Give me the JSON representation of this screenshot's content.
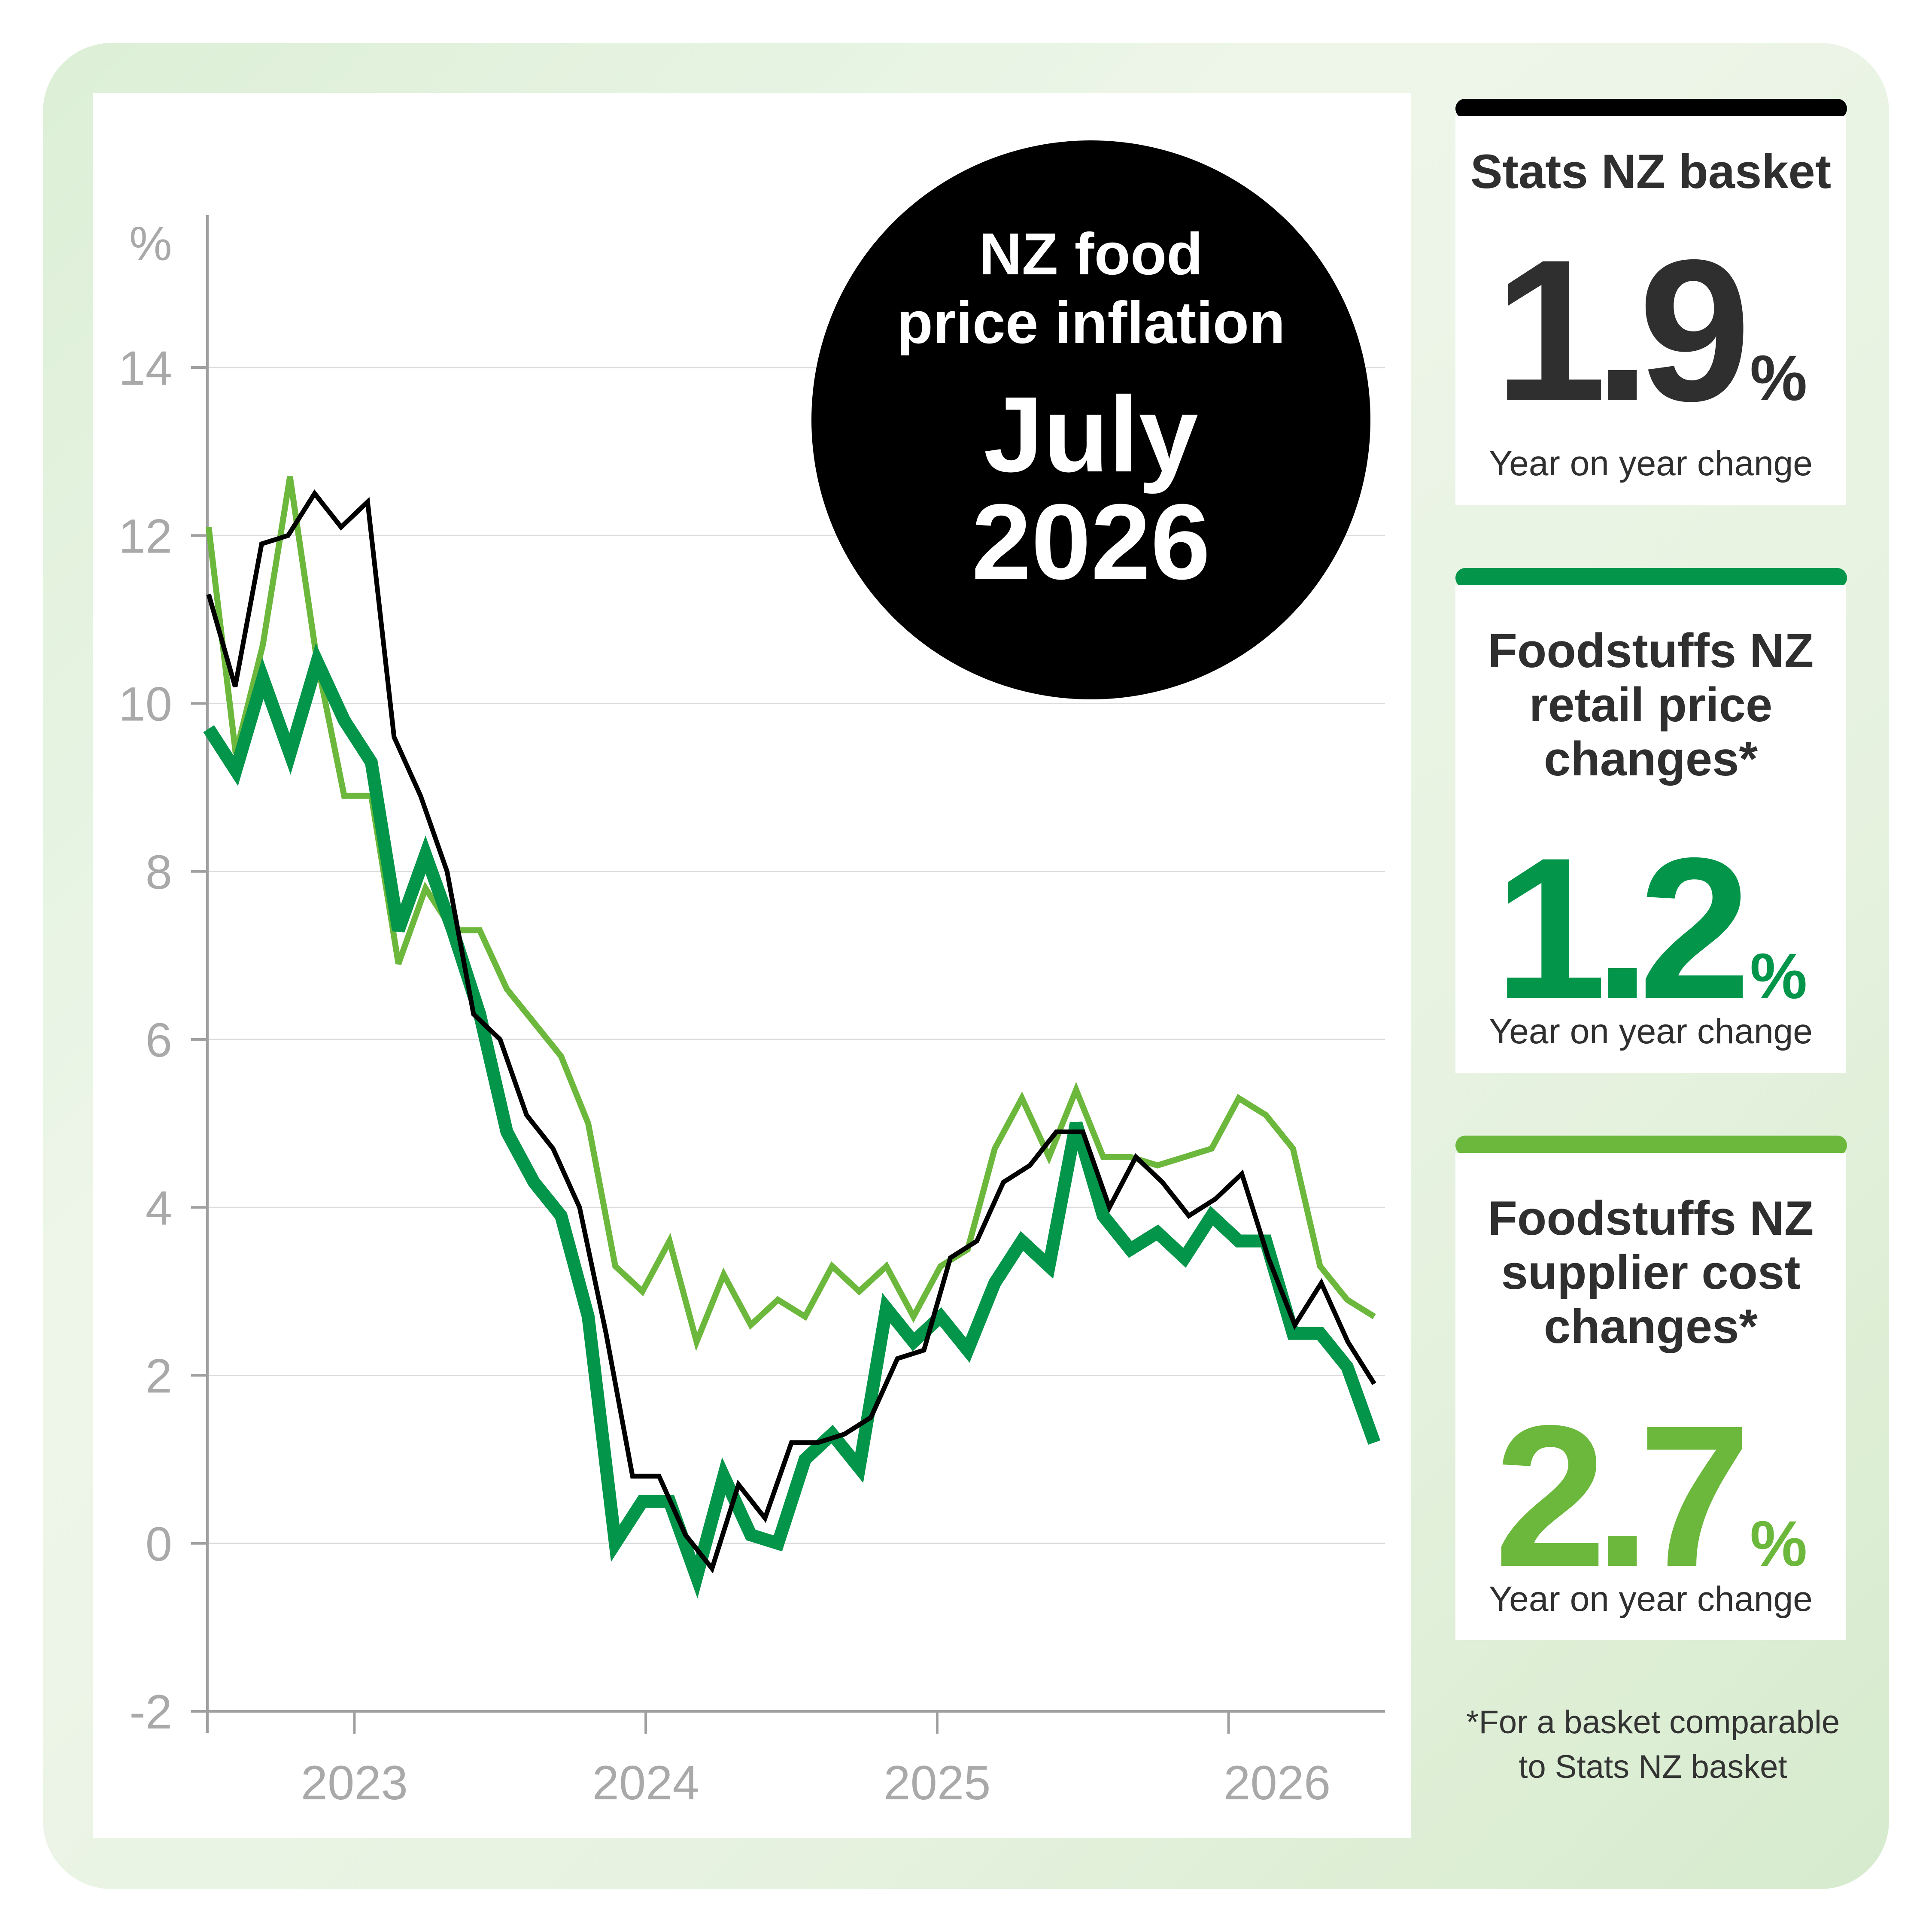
{
  "title": {
    "line1": "NZ food",
    "line2": "price inflation",
    "month": "July",
    "year": "2026"
  },
  "stats": [
    {
      "heading_lines": [
        "Stats NZ basket"
      ],
      "value": "1.9",
      "unit": "%",
      "caption": "Year on year change",
      "color": "#000000",
      "value_color": "#2f2f2f"
    },
    {
      "heading_lines": [
        "Foodstuffs NZ",
        "retail price",
        "changes*"
      ],
      "value": "1.2",
      "unit": "%",
      "caption": "Year on year change",
      "color": "#03954a",
      "value_color": "#03954a"
    },
    {
      "heading_lines": [
        "Foodstuffs NZ",
        "supplier cost",
        "changes*"
      ],
      "value": "2.7",
      "unit": "%",
      "caption": "Year on year change",
      "color": "#6cb83c",
      "value_color": "#6cb83c"
    }
  ],
  "footnote": {
    "line1": "*For a basket comparable",
    "line2": "to Stats NZ basket"
  },
  "chart_data": {
    "type": "line",
    "title": "NZ food price inflation July 2026",
    "ylabel": "%",
    "ylim": [
      -2,
      14
    ],
    "yticks": [
      -2,
      0,
      2,
      4,
      6,
      8,
      10,
      12,
      14
    ],
    "grid": true,
    "x_start": "2022-07",
    "x_end": "2026-07",
    "x_tick_labels": [
      "2023",
      "2024",
      "2025",
      "2026"
    ],
    "series": [
      {
        "key": "supplier",
        "color": "#6cb83c",
        "values": [
          12.1,
          9.4,
          10.7,
          12.7,
          10.5,
          8.9,
          8.9,
          6.9,
          7.8,
          7.3,
          7.3,
          6.6,
          6.2,
          5.8,
          5.0,
          3.3,
          3.0,
          3.6,
          2.4,
          3.2,
          2.6,
          2.9,
          2.7,
          3.3,
          3.0,
          3.3,
          2.7,
          3.3,
          3.5,
          4.7,
          5.3,
          4.6,
          5.4,
          4.6,
          4.6,
          4.5,
          4.6,
          4.7,
          5.3,
          5.1,
          4.7,
          3.3,
          2.9,
          2.7
        ]
      },
      {
        "key": "retail",
        "color": "#03954a",
        "values": [
          9.7,
          9.2,
          10.3,
          9.4,
          10.5,
          9.8,
          9.3,
          7.3,
          8.2,
          7.3,
          6.3,
          4.9,
          4.3,
          3.9,
          2.7,
          0.0,
          0.5,
          0.5,
          -0.4,
          0.8,
          0.1,
          0.0,
          1.0,
          1.3,
          0.9,
          2.8,
          2.4,
          2.7,
          2.3,
          3.1,
          3.6,
          3.3,
          5.0,
          3.9,
          3.5,
          3.7,
          3.4,
          3.9,
          3.6,
          3.6,
          2.5,
          2.5,
          2.1,
          1.2
        ]
      },
      {
        "key": "stats",
        "color": "#000000",
        "values": [
          11.3,
          10.2,
          11.9,
          12.0,
          12.5,
          12.1,
          12.4,
          9.6,
          8.9,
          8.0,
          6.3,
          6.0,
          5.1,
          4.7,
          4.0,
          2.5,
          0.8,
          0.8,
          0.1,
          -0.3,
          0.7,
          0.3,
          1.2,
          1.2,
          1.3,
          1.5,
          2.2,
          2.3,
          3.4,
          3.6,
          4.3,
          4.5,
          4.9,
          4.9,
          4.0,
          4.6,
          4.3,
          3.9,
          4.1,
          4.4,
          3.4,
          2.6,
          3.1,
          2.4,
          1.9
        ]
      }
    ]
  }
}
